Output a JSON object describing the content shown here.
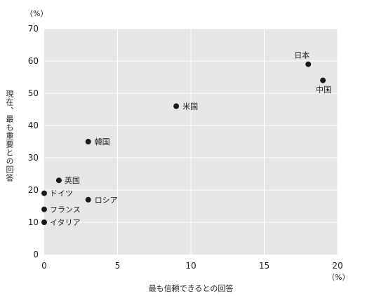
{
  "chart_data": {
    "type": "scatter",
    "title": "",
    "xlabel": "最も信頼できるとの回答",
    "ylabel": "現在、最も重要との回答",
    "x_unit": "（%）",
    "y_unit": "（%）",
    "xlim": [
      0,
      20
    ],
    "ylim": [
      0,
      70
    ],
    "xticks": [
      "0",
      "5",
      "10",
      "15",
      "20"
    ],
    "yticks": [
      "0",
      "10",
      "20",
      "30",
      "40",
      "50",
      "60",
      "70"
    ],
    "grid": true,
    "points": [
      {
        "label": "日本",
        "x": 18,
        "y": 59
      },
      {
        "label": "中国",
        "x": 19,
        "y": 54
      },
      {
        "label": "米国",
        "x": 9,
        "y": 46
      },
      {
        "label": "韓国",
        "x": 3,
        "y": 35
      },
      {
        "label": "英国",
        "x": 1,
        "y": 23
      },
      {
        "label": "ドイツ",
        "x": 0,
        "y": 19
      },
      {
        "label": "ロシア",
        "x": 3,
        "y": 17
      },
      {
        "label": "フランス",
        "x": 0,
        "y": 14
      },
      {
        "label": "イタリア",
        "x": 0,
        "y": 10
      }
    ]
  }
}
